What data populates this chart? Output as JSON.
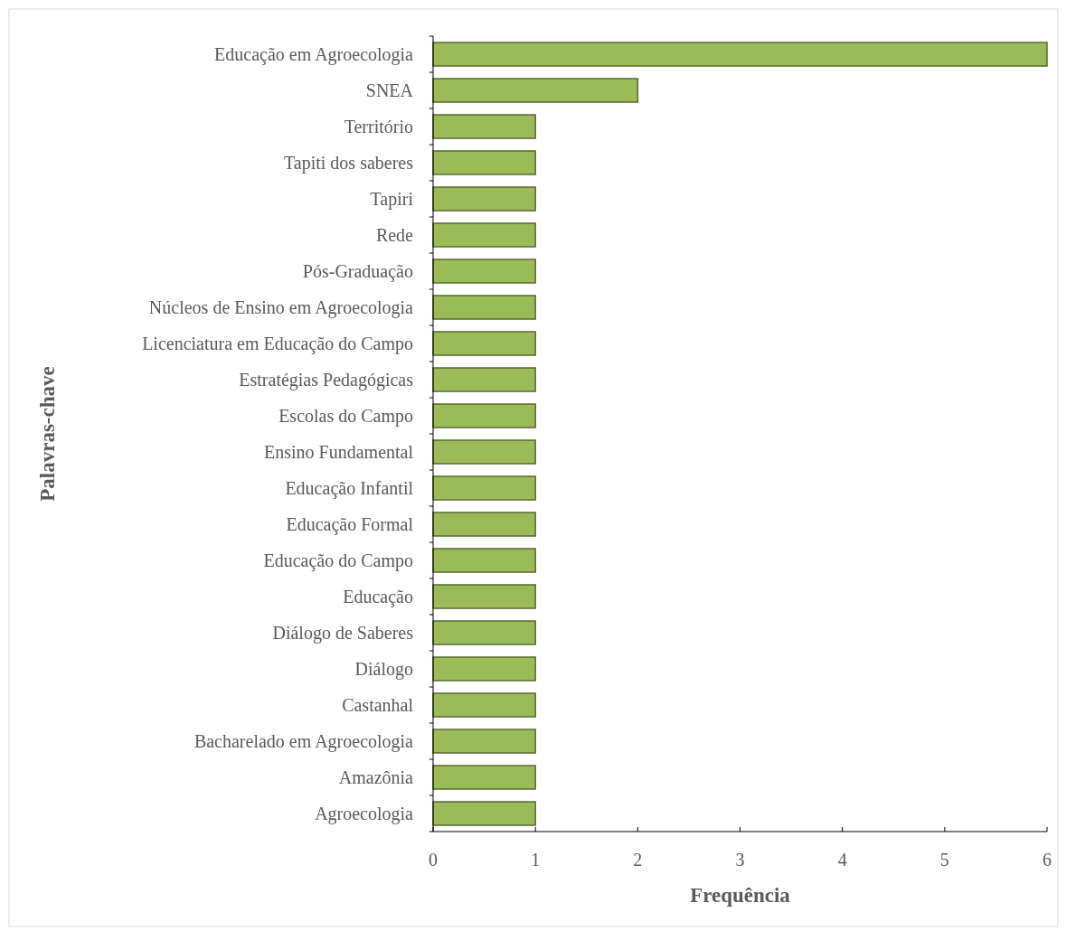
{
  "chart_data": {
    "type": "bar",
    "orientation": "horizontal",
    "xlabel": "Frequência",
    "ylabel": "Palavras-chave",
    "categories": [
      "Educação em Agroecologia",
      "SNEA",
      "Território",
      "Tapiti dos saberes",
      "Tapiri",
      "Rede",
      "Pós-Graduação",
      "Núcleos de Ensino em Agroecologia",
      "Licenciatura em Educação do Campo",
      "Estratégias Pedagógicas",
      "Escolas do Campo",
      "Ensino Fundamental",
      "Educação Infantil",
      "Educação Formal",
      "Educação do Campo",
      "Educação",
      "Diálogo de Saberes",
      "Diálogo",
      "Castanhal",
      "Bacharelado em Agroecologia",
      "Amazônia",
      "Agroecologia"
    ],
    "values": [
      6,
      2,
      1,
      1,
      1,
      1,
      1,
      1,
      1,
      1,
      1,
      1,
      1,
      1,
      1,
      1,
      1,
      1,
      1,
      1,
      1,
      1
    ],
    "color": "#9bbb59",
    "xlim": [
      0,
      6
    ],
    "xticks": [
      0,
      1,
      2,
      3,
      4,
      5,
      6
    ],
    "grid": false
  }
}
